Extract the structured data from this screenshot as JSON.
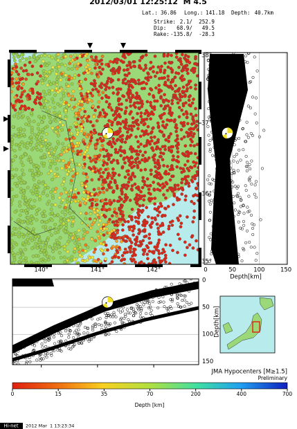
{
  "header": {
    "title": "2012/03/01 12:25:12  M 4.5"
  },
  "event": {
    "lat_label": "Lat.:",
    "lat": 36.86,
    "lon_label": "Long.:",
    "lon": 141.18,
    "depth_label": "Depth:",
    "depth": {
      "value": 40.7,
      "label": "40.7km"
    }
  },
  "mechanism": [
    {
      "label": "Strike:",
      "text": "2.1/  252.9"
    },
    {
      "label": "Dip:",
      "text": "68.9/   49.5"
    },
    {
      "label": "Rake:",
      "text": "-135.8/  -28.3"
    }
  ],
  "map": {
    "xlim": [
      139.45,
      142.8
    ],
    "ylim": [
      35,
      38
    ],
    "xticks": [
      {
        "value": 140,
        "label": "140°"
      },
      {
        "value": 141,
        "label": "141°"
      },
      {
        "value": 142,
        "label": "142°"
      }
    ],
    "yticks": [
      {
        "value": 35,
        "label": "35°"
      },
      {
        "value": 36,
        "label": "36°"
      },
      {
        "value": 37,
        "label": "37°"
      },
      {
        "value": 38,
        "label": "38°"
      }
    ]
  },
  "depth_section": {
    "xlabel": "Depth[km]",
    "xlim": [
      -2.5,
      152.5
    ],
    "xticks": [
      0,
      50,
      100,
      150
    ]
  },
  "lon_section": {
    "ylabel": "Depth[km]",
    "ylim": [
      -2.5,
      156
    ],
    "yticks": [
      0,
      50,
      100,
      150
    ]
  },
  "legend": {
    "title": "JMA Hypocenters [M≥1.5]",
    "note": "Preliminary"
  },
  "colorbar": {
    "label": "Depth [km]",
    "ticks": [
      0,
      15,
      35,
      70,
      200,
      400,
      700
    ]
  },
  "footer": {
    "badge": "Hi-net",
    "timestamp": "2012 Mar  1 13:23:34"
  }
}
